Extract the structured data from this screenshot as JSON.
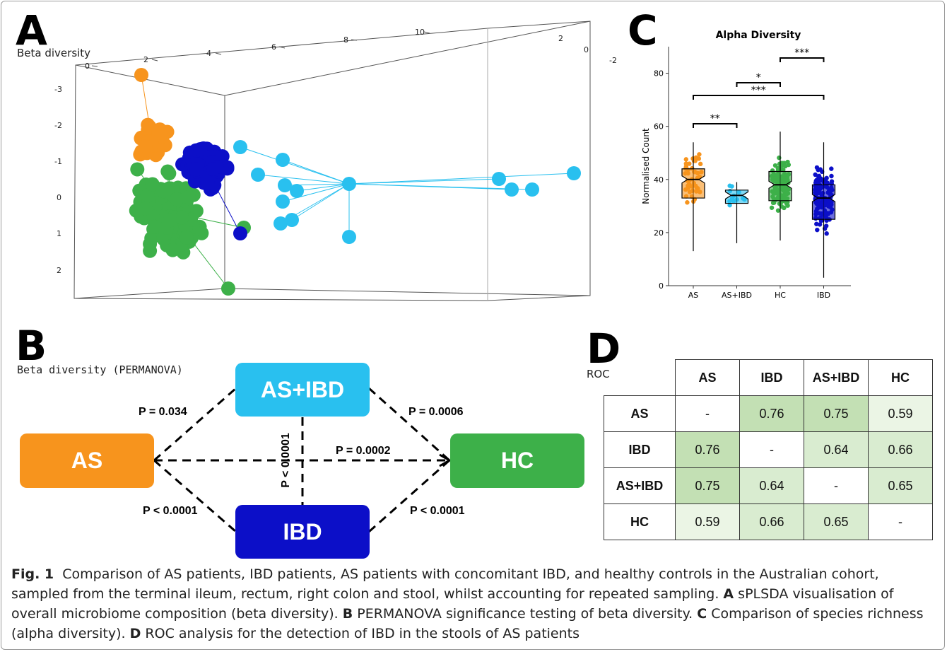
{
  "panel_a": {
    "letter": "A",
    "label": "Beta diversity",
    "axis_top_ticks": [
      "0",
      "2",
      "4",
      "6",
      "8",
      "10"
    ],
    "axis_right_ticks": [
      "2",
      "0",
      "-2"
    ],
    "axis_left_ticks": [
      "-3",
      "-2",
      "-1",
      "0",
      "1",
      "2"
    ],
    "colors": {
      "AS": "#f7941d",
      "IBD": "#0c0fc8",
      "AS+IBD": "#29c0ef",
      "HC": "#3db049"
    }
  },
  "panel_b": {
    "letter": "B",
    "label": "Beta diversity (PERMANOVA)",
    "nodes": {
      "as": "AS",
      "asibd": "AS+IBD",
      "hc": "HC",
      "ibd": "IBD"
    },
    "pvalues": {
      "as_asibd": "P = 0.034",
      "asibd_hc": "P = 0.0006",
      "as_hc": "P = 0.0002",
      "asibd_ibd": "P < 0.0001",
      "as_ibd": "P < 0.0001",
      "ibd_hc": "P < 0.0001"
    }
  },
  "panel_c": {
    "letter": "C",
    "chart_data": {
      "type": "box",
      "title": "Alpha Diversity",
      "xlabel": "",
      "ylabel": "Normalised Count",
      "ylim": [
        0,
        90
      ],
      "yticks": [
        0,
        20,
        40,
        60,
        80
      ],
      "categories": [
        "AS",
        "AS+IBD",
        "HC",
        "IBD"
      ],
      "colors": [
        "#f7941d",
        "#29c0ef",
        "#3db049",
        "#0c0fc8"
      ],
      "boxes": [
        {
          "name": "AS",
          "min": 13,
          "q1": 33,
          "median": 40,
          "q3": 44,
          "max": 54
        },
        {
          "name": "AS+IBD",
          "min": 16,
          "q1": 31,
          "median": 34,
          "q3": 36,
          "max": 39
        },
        {
          "name": "HC",
          "min": 17,
          "q1": 32,
          "median": 38,
          "q3": 43,
          "max": 58
        },
        {
          "name": "IBD",
          "min": 3,
          "q1": 25,
          "median": 33,
          "q3": 38,
          "max": 54
        }
      ],
      "significance": [
        {
          "pair": [
            "AS",
            "AS+IBD"
          ],
          "label": "**"
        },
        {
          "pair": [
            "AS+IBD",
            "HC"
          ],
          "label": "*"
        },
        {
          "pair": [
            "AS",
            "IBD"
          ],
          "label": "***"
        },
        {
          "pair": [
            "HC",
            "IBD"
          ],
          "label": "***"
        }
      ]
    }
  },
  "panel_d": {
    "letter": "D",
    "label": "ROC",
    "headers": [
      "AS",
      "IBD",
      "AS+IBD",
      "HC"
    ],
    "rows": [
      {
        "name": "AS",
        "cells": [
          "-",
          "0.76",
          "0.75",
          "0.59"
        ]
      },
      {
        "name": "IBD",
        "cells": [
          "0.76",
          "-",
          "0.64",
          "0.66"
        ]
      },
      {
        "name": "AS+IBD",
        "cells": [
          "0.75",
          "0.64",
          "-",
          "0.65"
        ]
      },
      {
        "name": "HC",
        "cells": [
          "0.59",
          "0.66",
          "0.65",
          "-"
        ]
      }
    ],
    "shade_colors": {
      "high": "#c3e0b4",
      "mid": "#d9ecd0",
      "low": "#ebf5e5",
      "none": "#ffffff"
    }
  },
  "caption": {
    "fig": "Fig. 1",
    "intro": "Comparison of AS patients, IBD patients, AS patients with concomitant IBD, and healthy controls in the Australian cohort, sampled from the terminal ileum, rectum, right colon and stool, whilst accounting for repeated sampling.",
    "a_key": "A",
    "a_text": "sPLSDA visualisation of overall microbiome composition (beta diversity).",
    "b_key": "B",
    "b_text": "PERMANOVA significance testing of beta diversity.",
    "c_key": "C",
    "c_text": "Comparison of species richness (alpha diversity).",
    "d_key": "D",
    "d_text": "ROC analysis for the detection of IBD in the stools of AS patients"
  }
}
